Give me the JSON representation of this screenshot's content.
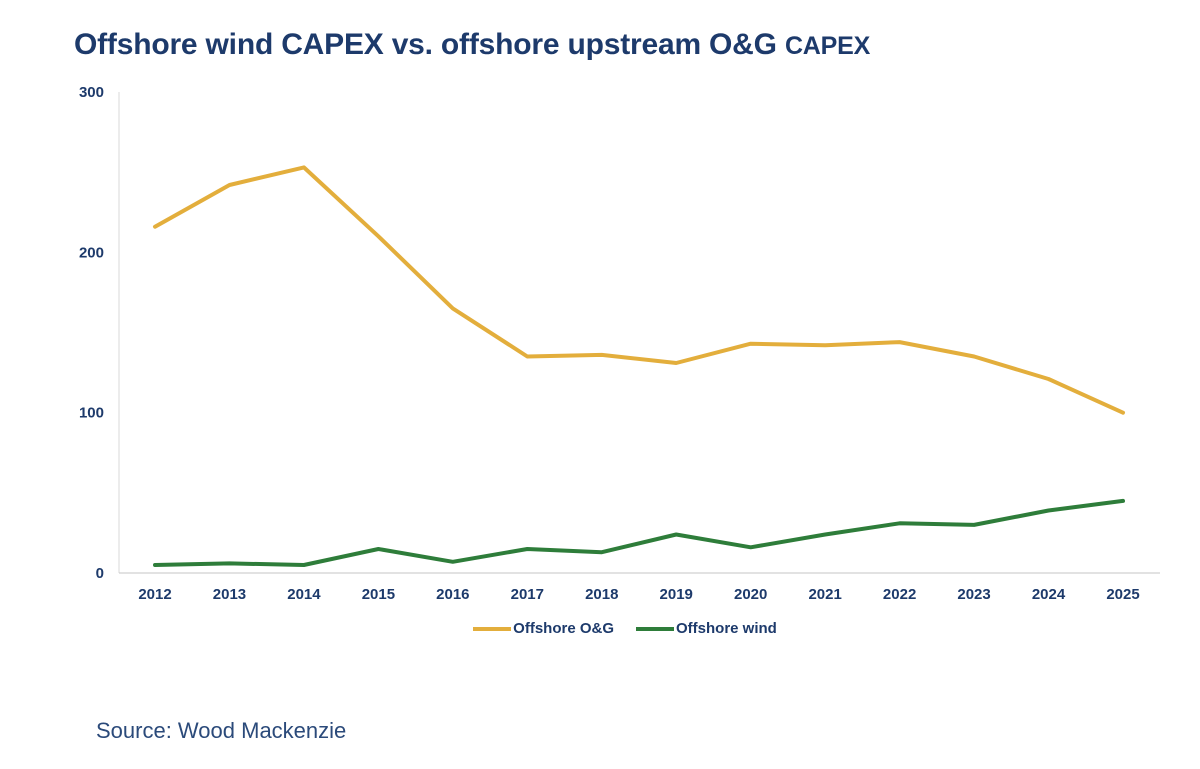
{
  "title": {
    "main": "Offshore wind CAPEX vs. offshore upstream O&G",
    "suffix": "CAPEX"
  },
  "source": "Source: Wood Mackenzie",
  "chart_data": {
    "type": "line",
    "x": [
      "2012",
      "2013",
      "2014",
      "2015",
      "2016",
      "2017",
      "2018",
      "2019",
      "2020",
      "2021",
      "2022",
      "2023",
      "2024",
      "2025"
    ],
    "y_ticks": [
      "0",
      "100",
      "200",
      "300"
    ],
    "ylim": [
      0,
      300
    ],
    "series": [
      {
        "name": "Offshore O&G",
        "color": "#e3ae3c",
        "values": [
          216,
          242,
          253,
          210,
          165,
          135,
          136,
          131,
          143,
          142,
          144,
          135,
          121,
          100
        ]
      },
      {
        "name": "Offshore wind",
        "color": "#2e7d3a",
        "values": [
          5,
          6,
          5,
          15,
          7,
          15,
          13,
          24,
          16,
          24,
          31,
          30,
          39,
          45
        ]
      }
    ],
    "grid": false,
    "legend_position": "bottom-center"
  }
}
